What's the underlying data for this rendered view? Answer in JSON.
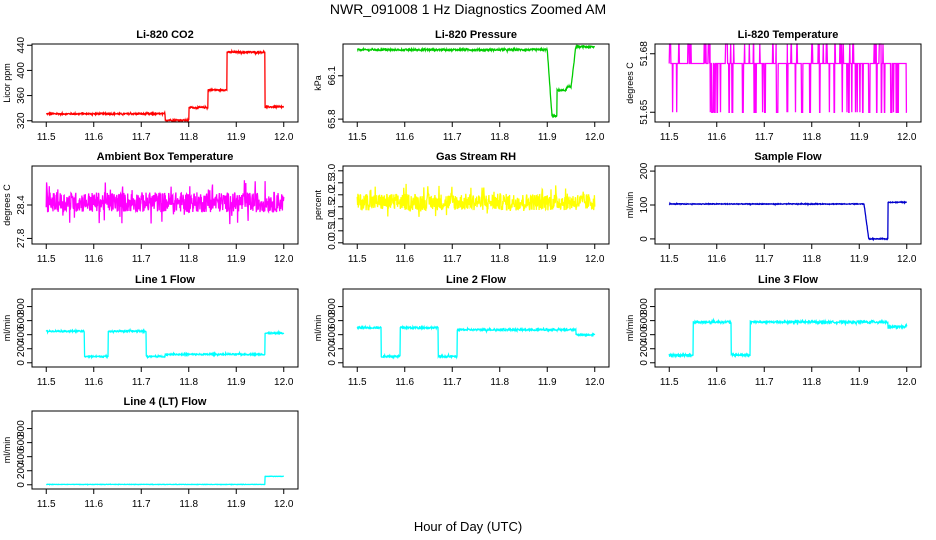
{
  "figure": {
    "title": "NWR_091008  1 Hz Diagnostics Zoomed AM",
    "xlabel": "Hour of Day (UTC)"
  },
  "chart_data": [
    {
      "type": "line",
      "title": "Li-820 CO2",
      "ylabel": "Licor ppm",
      "color": "#ff0000",
      "xlim": [
        11.47,
        12.03
      ],
      "ylim": [
        318,
        442
      ],
      "x_ticks": [
        11.5,
        11.6,
        11.7,
        11.8,
        11.9,
        12.0
      ],
      "y_ticks": [
        320,
        360,
        400,
        440
      ],
      "segments": [
        [
          11.5,
          331
        ],
        [
          11.75,
          331
        ],
        [
          11.75,
          321
        ],
        [
          11.8,
          321
        ],
        [
          11.8,
          341
        ],
        [
          11.84,
          341
        ],
        [
          11.84,
          369
        ],
        [
          11.88,
          369
        ],
        [
          11.88,
          429
        ],
        [
          11.96,
          429
        ],
        [
          11.96,
          342
        ],
        [
          12.0,
          342
        ]
      ],
      "noise": 1.2
    },
    {
      "type": "line",
      "title": "Li-820 Pressure",
      "ylabel": "kPa",
      "color": "#00cc00",
      "xlim": [
        11.47,
        12.03
      ],
      "ylim": [
        65.78,
        66.32
      ],
      "x_ticks": [
        11.5,
        11.6,
        11.7,
        11.8,
        11.9,
        12.0
      ],
      "y_ticks": [
        65.8,
        66.1
      ],
      "segments": [
        [
          11.5,
          66.28
        ],
        [
          11.9,
          66.28
        ],
        [
          11.91,
          65.82
        ],
        [
          11.92,
          65.82
        ],
        [
          11.92,
          66.0
        ],
        [
          11.94,
          66.0
        ],
        [
          11.94,
          66.02
        ],
        [
          11.95,
          66.02
        ],
        [
          11.96,
          66.3
        ],
        [
          12.0,
          66.3
        ]
      ],
      "noise": 0.006
    },
    {
      "type": "line",
      "title": "Li-820 Temperature",
      "ylabel": "degrees C",
      "color": "#ff00ff",
      "xlim": [
        11.47,
        12.03
      ],
      "ylim": [
        51.645,
        51.685
      ],
      "x_ticks": [
        11.5,
        11.6,
        11.7,
        11.8,
        11.9,
        12.0
      ],
      "y_ticks": [
        51.65,
        51.68
      ],
      "segments": [
        [
          11.5,
          51.675
        ],
        [
          12.0,
          51.675
        ]
      ],
      "toggle": {
        "levels": [
          51.65,
          51.675,
          51.685
        ]
      }
    },
    {
      "type": "line",
      "title": "Ambient Box Temperature",
      "ylabel": "degrees C",
      "color": "#ff00ff",
      "xlim": [
        11.47,
        12.03
      ],
      "ylim": [
        27.7,
        29.1
      ],
      "x_ticks": [
        11.5,
        11.6,
        11.7,
        11.8,
        11.9,
        12.0
      ],
      "y_ticks": [
        27.8,
        28.4
      ],
      "segments": [
        [
          11.5,
          28.45
        ],
        [
          12.0,
          28.45
        ]
      ],
      "noise": 0.18
    },
    {
      "type": "line",
      "title": "Gas Stream RH",
      "ylabel": "percent",
      "color": "#ffff00",
      "xlim": [
        11.47,
        12.03
      ],
      "ylim": [
        -0.05,
        3.2
      ],
      "x_ticks": [
        11.5,
        11.6,
        11.7,
        11.8,
        11.9,
        12.0
      ],
      "y_ticks": [
        0.0,
        0.5,
        1.0,
        1.5,
        2.0,
        2.5,
        3.0
      ],
      "segments": [
        [
          11.5,
          1.7
        ],
        [
          12.0,
          1.7
        ]
      ],
      "noise": 0.35
    },
    {
      "type": "line",
      "title": "Sample Flow",
      "ylabel": "ml/min",
      "color": "#0000cc",
      "xlim": [
        11.47,
        12.03
      ],
      "ylim": [
        -15,
        215
      ],
      "x_ticks": [
        11.5,
        11.6,
        11.7,
        11.8,
        11.9,
        12.0
      ],
      "y_ticks": [
        0,
        100,
        200
      ],
      "segments": [
        [
          11.5,
          103
        ],
        [
          11.91,
          103
        ],
        [
          11.92,
          0
        ],
        [
          11.96,
          0
        ],
        [
          11.96,
          108
        ],
        [
          12.0,
          108
        ]
      ],
      "noise": 1.0
    },
    {
      "type": "line",
      "title": "Line 1 Flow",
      "ylabel": "ml/min",
      "color": "#00ffff",
      "xlim": [
        11.47,
        12.03
      ],
      "ylim": [
        -60,
        1050
      ],
      "x_ticks": [
        11.5,
        11.6,
        11.7,
        11.8,
        11.9,
        12.0
      ],
      "y_ticks": [
        0,
        200,
        400,
        600,
        800
      ],
      "segments": [
        [
          11.5,
          450
        ],
        [
          11.58,
          450
        ],
        [
          11.58,
          90
        ],
        [
          11.63,
          90
        ],
        [
          11.63,
          450
        ],
        [
          11.71,
          450
        ],
        [
          11.71,
          90
        ],
        [
          11.75,
          90
        ],
        [
          11.75,
          120
        ],
        [
          11.96,
          120
        ],
        [
          11.96,
          420
        ],
        [
          12.0,
          420
        ]
      ],
      "noise": 10
    },
    {
      "type": "line",
      "title": "Line 2 Flow",
      "ylabel": "ml/min",
      "color": "#00ffff",
      "xlim": [
        11.47,
        12.03
      ],
      "ylim": [
        -60,
        1050
      ],
      "x_ticks": [
        11.5,
        11.6,
        11.7,
        11.8,
        11.9,
        12.0
      ],
      "y_ticks": [
        0,
        200,
        400,
        600,
        800
      ],
      "segments": [
        [
          11.5,
          500
        ],
        [
          11.55,
          500
        ],
        [
          11.55,
          90
        ],
        [
          11.59,
          90
        ],
        [
          11.59,
          500
        ],
        [
          11.67,
          500
        ],
        [
          11.67,
          90
        ],
        [
          11.71,
          90
        ],
        [
          11.71,
          470
        ],
        [
          11.96,
          470
        ],
        [
          11.96,
          400
        ],
        [
          12.0,
          400
        ]
      ],
      "noise": 12
    },
    {
      "type": "line",
      "title": "Line 3 Flow",
      "ylabel": "ml/min",
      "color": "#00ffff",
      "xlim": [
        11.47,
        12.03
      ],
      "ylim": [
        -60,
        1050
      ],
      "x_ticks": [
        11.5,
        11.6,
        11.7,
        11.8,
        11.9,
        12.0
      ],
      "y_ticks": [
        0,
        200,
        400,
        600,
        800
      ],
      "segments": [
        [
          11.5,
          110
        ],
        [
          11.55,
          110
        ],
        [
          11.55,
          580
        ],
        [
          11.63,
          580
        ],
        [
          11.63,
          110
        ],
        [
          11.67,
          110
        ],
        [
          11.67,
          580
        ],
        [
          11.96,
          580
        ],
        [
          11.96,
          510
        ],
        [
          12.0,
          510
        ]
      ],
      "noise": 15
    },
    {
      "type": "line",
      "title": "Line 4 (LT) Flow",
      "ylabel": "ml/min",
      "color": "#00ffff",
      "xlim": [
        11.47,
        12.03
      ],
      "ylim": [
        -60,
        1050
      ],
      "x_ticks": [
        11.5,
        11.6,
        11.7,
        11.8,
        11.9,
        12.0
      ],
      "y_ticks": [
        0,
        200,
        400,
        600,
        800
      ],
      "segments": [
        [
          11.5,
          5
        ],
        [
          11.96,
          5
        ],
        [
          11.96,
          120
        ],
        [
          12.0,
          120
        ]
      ],
      "noise": 2
    }
  ]
}
